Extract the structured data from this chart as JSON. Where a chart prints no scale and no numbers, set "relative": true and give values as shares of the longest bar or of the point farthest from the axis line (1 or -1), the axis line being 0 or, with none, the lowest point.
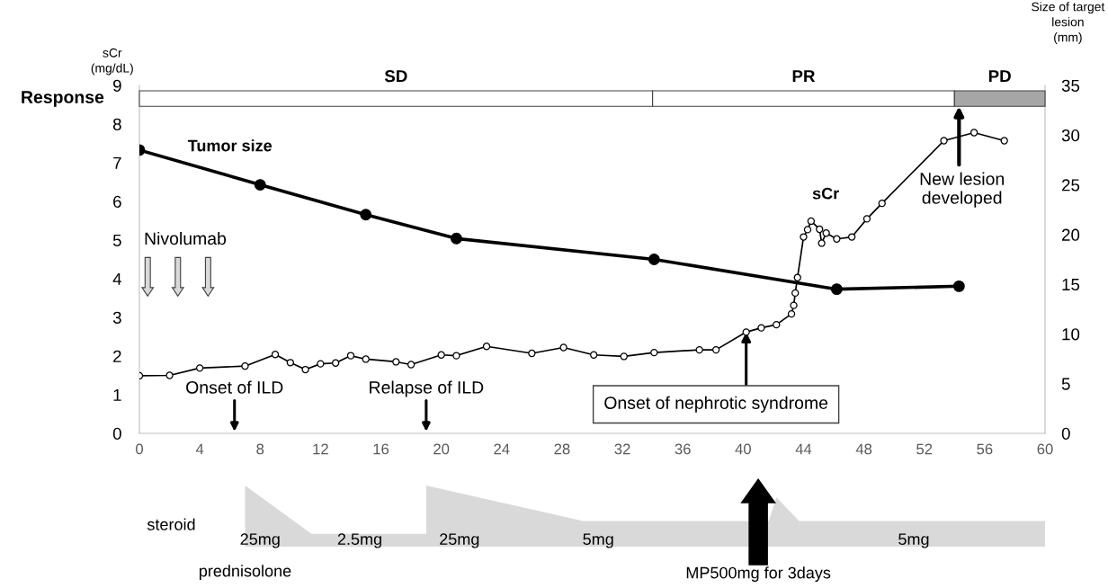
{
  "chart_data": [
    {
      "type": "line",
      "ylabel": "sCr\n(mg/dL)",
      "y2label": "Size of target\nlesion\n(mm)",
      "xlim": [
        0,
        60
      ],
      "xticks": [
        0,
        4,
        8,
        12,
        16,
        20,
        24,
        28,
        32,
        36,
        40,
        44,
        48,
        52,
        56,
        60
      ],
      "ylim": [
        0,
        9
      ],
      "yticks": [
        0,
        1,
        2,
        3,
        4,
        5,
        6,
        7,
        8,
        9
      ],
      "y2lim": [
        0,
        35
      ],
      "y2ticks": [
        0,
        5,
        10,
        15,
        20,
        25,
        30,
        35
      ],
      "series": [
        {
          "name": "sCr",
          "color": "#000000",
          "marker": "circle",
          "x": [
            0,
            2,
            4,
            7,
            9,
            10,
            11,
            12,
            13,
            14,
            15,
            17,
            18,
            20,
            21,
            23,
            26,
            28.1,
            30.1,
            32.1,
            34.1,
            37.1,
            38.2,
            40.2,
            41.2,
            42.2,
            43.2,
            43.35,
            43.45,
            43.6,
            44,
            44.27,
            44.5,
            45.06,
            45.2,
            45.5,
            46.2,
            47.2,
            48.2,
            49.2,
            53.3,
            55.3,
            57.3
          ],
          "values": [
            1.49,
            1.5,
            1.69,
            1.74,
            2.04,
            1.83,
            1.65,
            1.8,
            1.82,
            2.01,
            1.92,
            1.85,
            1.78,
            2.03,
            2.01,
            2.25,
            2.07,
            2.22,
            2.03,
            1.99,
            2.09,
            2.16,
            2.16,
            2.62,
            2.73,
            2.81,
            3.09,
            3.31,
            3.63,
            4.03,
            5.08,
            5.27,
            5.49,
            5.28,
            4.92,
            5.18,
            5.03,
            5.08,
            5.55,
            5.95,
            7.57,
            7.78,
            7.57
          ]
        },
        {
          "name": "Tumor size",
          "color": "#000000",
          "marker": "circle",
          "axis": "y2",
          "x": [
            0,
            8,
            15,
            21,
            34.1,
            46.2,
            54.3
          ],
          "values": [
            28.5,
            25,
            22,
            19.6,
            17.5,
            14.5,
            14.8
          ]
        }
      ],
      "bands": [
        {
          "axis": "x",
          "from": 0,
          "to": 34,
          "label": "SD",
          "color": "#ffffff"
        },
        {
          "axis": "x",
          "from": 34,
          "to": 54,
          "label": "PR",
          "color": "#ffffff"
        },
        {
          "axis": "x",
          "from": 54,
          "to": 60,
          "label": "PD",
          "color": "#a6a6a6"
        }
      ],
      "annotations": [
        "Response",
        "Nivolumab",
        "Onset of ILD",
        "Relapse of ILD",
        {
          "text": "Onset of nephrotic syndrome",
          "x": 40.2,
          "y": 2.62
        },
        "New lesion\ndeveloped"
      ]
    },
    {
      "type": "area",
      "relative": true,
      "xlim": [
        0,
        60
      ],
      "tick_labels": false,
      "series": [
        {
          "color": "#d9d9d9",
          "x": [
            7,
            7,
            11.4,
            18.9,
            19,
            19,
            29.4,
            41.7,
            42.2,
            43.7,
            60
          ],
          "values": [
            0,
            1,
            0.21,
            0.21,
            0.21,
            1,
            0.42,
            0.42,
            0.81,
            0.42,
            0.42
          ]
        }
      ],
      "annotations": [
        "steroid",
        "prednisolone",
        "25mg",
        "2.5mg",
        "25mg",
        "5mg",
        "MP500mg for 3days",
        "5mg"
      ]
    }
  ]
}
